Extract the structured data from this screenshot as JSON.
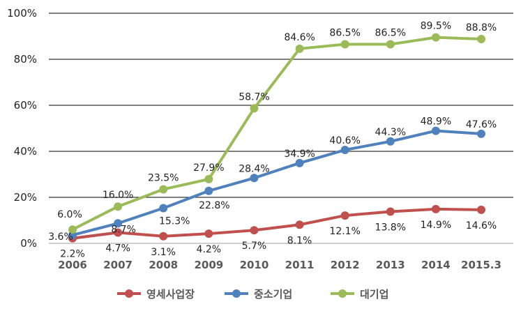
{
  "chart_data": {
    "type": "line",
    "categories": [
      "2006",
      "2007",
      "2008",
      "2009",
      "2010",
      "2011",
      "2012",
      "2013",
      "2014",
      "2015.3"
    ],
    "ylim": [
      0,
      100
    ],
    "yticks": [
      "0%",
      "20%",
      "40%",
      "60%",
      "80%",
      "100%"
    ],
    "grid": true,
    "legend_position": "bottom",
    "series": [
      {
        "name": "영세사업장",
        "color": "#C0504D",
        "values": [
          2.2,
          4.7,
          3.1,
          4.2,
          5.7,
          8.1,
          12.1,
          13.8,
          14.9,
          14.6
        ],
        "labels": [
          "2.2%",
          "4.7%",
          "3.1%",
          "4.2%",
          "5.7%",
          "8.1%",
          "12.1%",
          "13.8%",
          "14.9%",
          "14.6%"
        ]
      },
      {
        "name": "중소기업",
        "color": "#4F81BD",
        "values": [
          3.6,
          8.7,
          15.3,
          22.8,
          28.4,
          34.9,
          40.6,
          44.3,
          48.9,
          47.6
        ],
        "labels": [
          "3.6%",
          "8.7%",
          "15.3%",
          "22.8%",
          "28.4%",
          "34.9%",
          "40.6%",
          "44.3%",
          "48.9%",
          "47.6%"
        ]
      },
      {
        "name": "대기업",
        "color": "#9BBB59",
        "values": [
          6.0,
          16.0,
          23.5,
          27.9,
          58.7,
          84.6,
          86.5,
          86.5,
          89.5,
          88.8
        ],
        "labels": [
          "6.0%",
          "16.0%",
          "23.5%",
          "27.9%",
          "58.7%",
          "84.6%",
          "86.5%",
          "86.5%",
          "89.5%",
          "88.8%"
        ]
      }
    ]
  }
}
